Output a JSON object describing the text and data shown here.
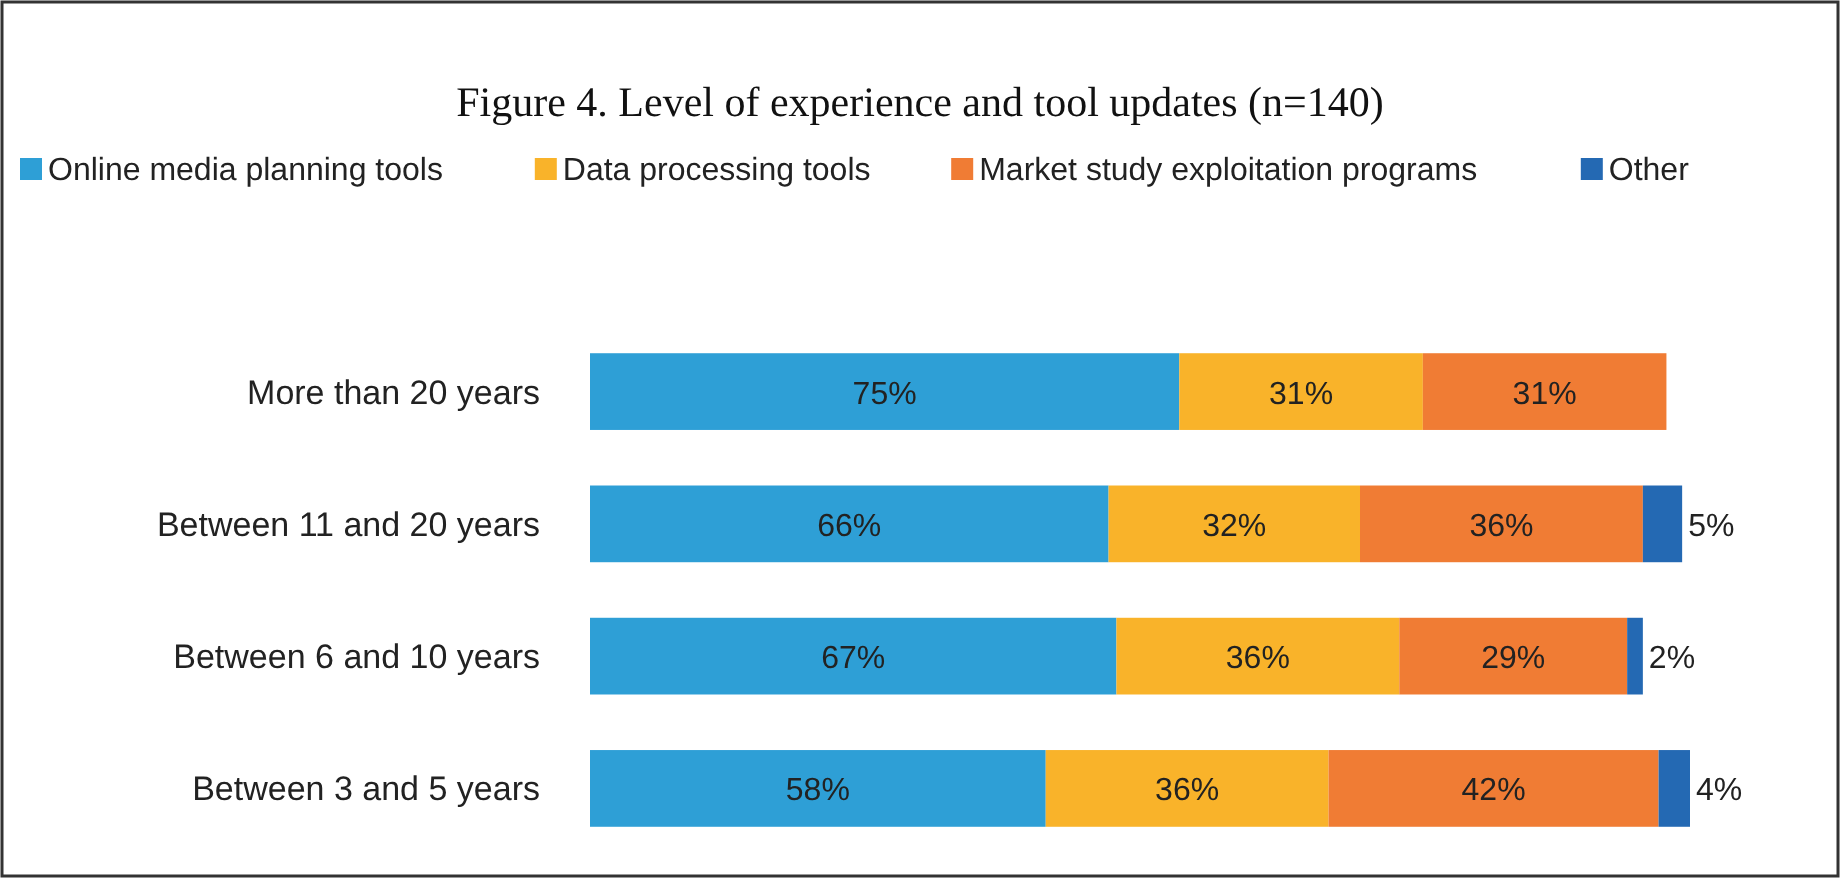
{
  "chart_data": {
    "type": "bar",
    "orientation": "horizontal",
    "stacked": true,
    "legend": "top",
    "title": "Figure 4. Level of experience and tool updates (n=140)",
    "categories": [
      "More than 20 years",
      "Between 11 and 20 years",
      "Between 6 and 10 years",
      "Between 3 and 5 years"
    ],
    "series": [
      {
        "name": "Online media planning tools",
        "color": "#2e9fd6",
        "values": [
          75,
          66,
          67,
          58
        ],
        "value_labels": [
          "75%",
          "66%",
          "67%",
          "58%"
        ]
      },
      {
        "name": "Data processing tools",
        "color": "#f9b32a",
        "values": [
          31,
          32,
          36,
          36
        ],
        "value_labels": [
          "31%",
          "32%",
          "36%",
          "36%"
        ]
      },
      {
        "name": "Market study exploitation programs",
        "color": "#f07c34",
        "values": [
          31,
          36,
          29,
          42
        ],
        "value_labels": [
          "31%",
          "36%",
          "29%",
          "42%"
        ]
      },
      {
        "name": "Other",
        "color": "#2469b3",
        "values": [
          null,
          5,
          2,
          4
        ],
        "value_labels": [
          null,
          "5%",
          "2%",
          "4%"
        ]
      }
    ]
  }
}
